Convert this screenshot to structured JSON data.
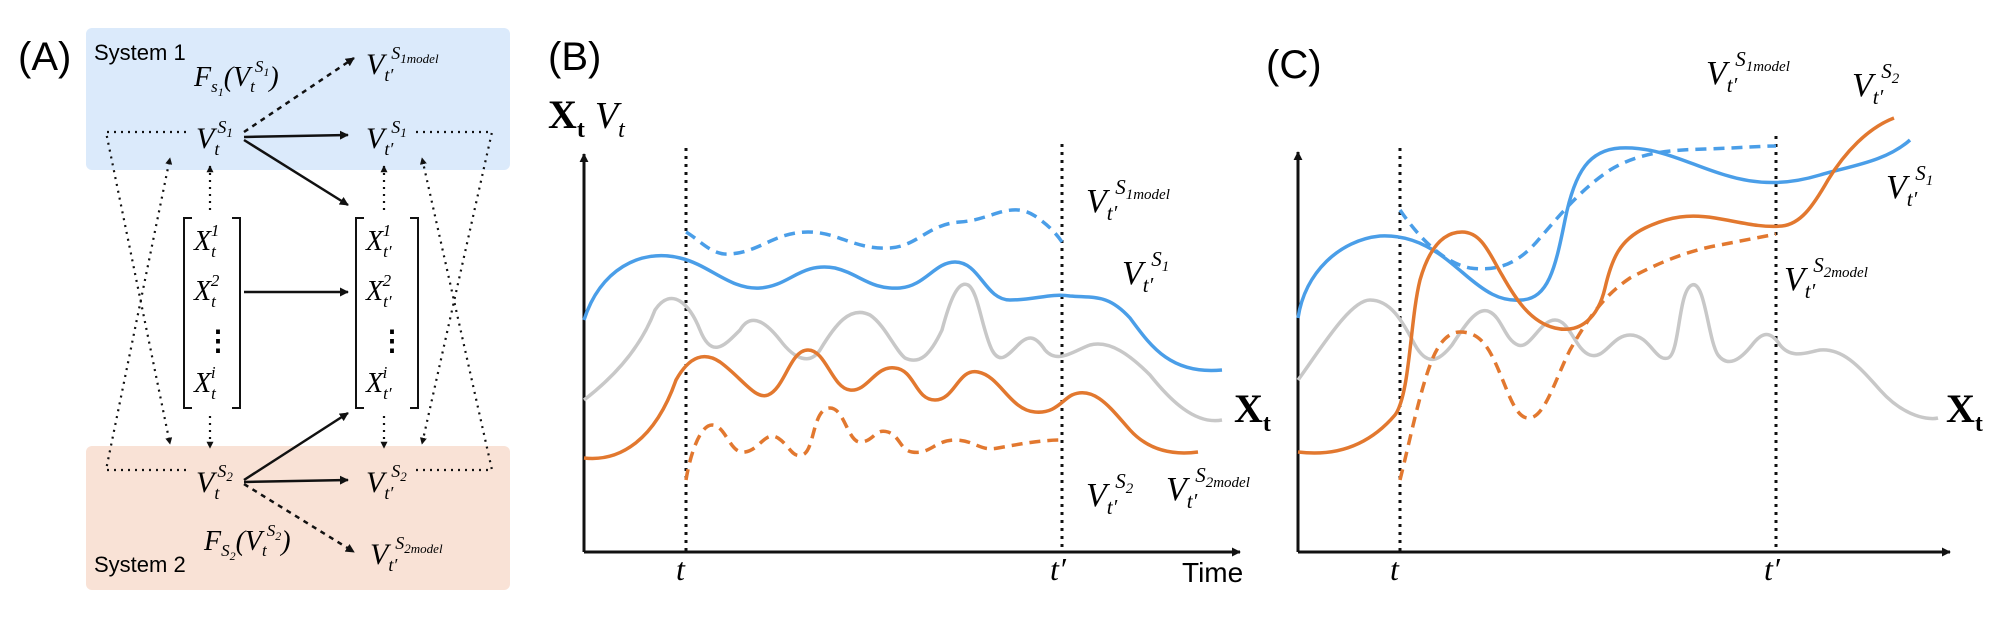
{
  "panels": {
    "a": {
      "label": "(A)",
      "system1": "System 1",
      "system2": "System 2",
      "model_fn1": {
        "base": "F",
        "sub": "s",
        "subsub": "1",
        "open": "(V",
        "sub2": "t",
        "sup2": "S",
        "sup2sub": "1",
        "close": ")"
      },
      "model_fn2": {
        "base": "F",
        "sub": "S",
        "subsub": "2",
        "open": "(V",
        "sub2": "t",
        "sup2": "S",
        "sup2sub": "2",
        "close": ")"
      },
      "v_t_s1": {
        "base": "V",
        "sub": "t",
        "sup": "S",
        "supsub": "1"
      },
      "v_t_s2": {
        "base": "V",
        "sub": "t",
        "sup": "S",
        "supsub": "2"
      },
      "v_tp_s1": {
        "base": "V",
        "sub": "t′",
        "sup": "S",
        "supsub": "1"
      },
      "v_tp_s2": {
        "base": "V",
        "sub": "t′",
        "sup": "S",
        "supsub": "2"
      },
      "v_tp_s1model": {
        "base": "V",
        "sub": "t′",
        "sup": "S",
        "supsub": "1model"
      },
      "v_tp_s2model": {
        "base": "V",
        "sub": "t′",
        "sup": "S",
        "supsub": "2model"
      },
      "x_t": [
        {
          "base": "X",
          "sub": "t",
          "sup": "1"
        },
        {
          "base": "X",
          "sub": "t",
          "sup": "2"
        },
        {
          "base": "X",
          "sub": "t",
          "sup": "i"
        }
      ],
      "x_tp": [
        {
          "base": "X",
          "sub": "t′",
          "sup": "1"
        },
        {
          "base": "X",
          "sub": "t′",
          "sup": "2"
        },
        {
          "base": "X",
          "sub": "t′",
          "sup": "i"
        }
      ],
      "vdots": "⋮"
    },
    "b": {
      "label": "(B)",
      "y_axis": {
        "x_bold": "X",
        "x_sub": "t",
        "v": "V",
        "v_sub": "t"
      },
      "t_label": "t",
      "tp_label": "t′",
      "time_label": "Time",
      "xt_label": {
        "base": "X",
        "sub": "t"
      },
      "v_s1model": {
        "base": "V",
        "sub": "t′",
        "sup": "S",
        "supsub": "1model"
      },
      "v_s1": {
        "base": "V",
        "sub": "t′",
        "sup": "S",
        "supsub": "1"
      },
      "v_s2": {
        "base": "V",
        "sub": "t′",
        "sup": "S",
        "supsub": "2"
      },
      "v_s2model": {
        "base": "V",
        "sub": "t′",
        "sup": "S",
        "supsub": "2model"
      }
    },
    "c": {
      "label": "(C)",
      "t_label": "t",
      "tp_label": "t′",
      "xt_label": {
        "base": "X",
        "sub": "t"
      },
      "v_s1model": {
        "base": "V",
        "sub": "t′",
        "sup": "S",
        "supsub": "1model"
      },
      "v_s2": {
        "base": "V",
        "sub": "t′",
        "sup": "S",
        "supsub": "2"
      },
      "v_s1": {
        "base": "V",
        "sub": "t′",
        "sup": "S",
        "supsub": "1"
      },
      "v_s2model": {
        "base": "V",
        "sub": "t′",
        "sup": "S",
        "supsub": "2model"
      }
    }
  },
  "colors": {
    "system1_bg": "#dbeafb",
    "system2_bg": "#f9e2d6",
    "blue": "#4a9ee8",
    "orange": "#e2782f",
    "gray": "#c8c8c8",
    "ink": "#111111"
  }
}
